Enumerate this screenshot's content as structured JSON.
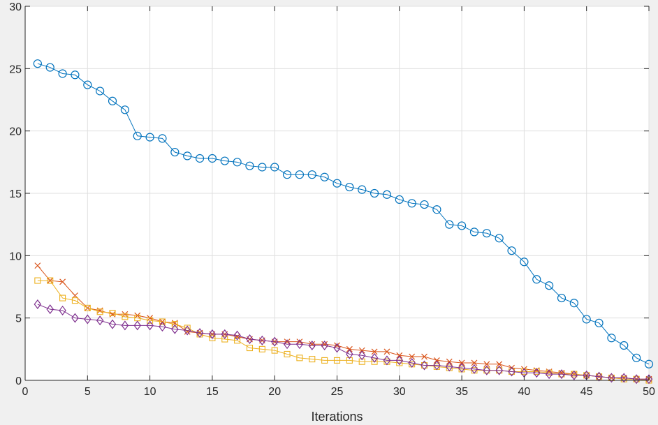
{
  "chart_data": {
    "type": "line",
    "title": "",
    "xlabel": "Iterations",
    "ylabel": "",
    "xlim": [
      0,
      50
    ],
    "ylim": [
      0,
      30
    ],
    "xticks": [
      0,
      5,
      10,
      15,
      20,
      25,
      30,
      35,
      40,
      45,
      50
    ],
    "yticks": [
      0,
      5,
      10,
      15,
      20,
      25,
      30
    ],
    "grid": true,
    "x": [
      1,
      2,
      3,
      4,
      5,
      6,
      7,
      8,
      9,
      10,
      11,
      12,
      13,
      14,
      15,
      16,
      17,
      18,
      19,
      20,
      21,
      22,
      23,
      24,
      25,
      26,
      27,
      28,
      29,
      30,
      31,
      32,
      33,
      34,
      35,
      36,
      37,
      38,
      39,
      40,
      41,
      42,
      43,
      44,
      45,
      46,
      47,
      48,
      49,
      50
    ],
    "series": [
      {
        "color": "#0072BD",
        "marker": "circle",
        "values": [
          25.4,
          25.1,
          24.6,
          24.5,
          23.7,
          23.2,
          22.4,
          21.7,
          19.6,
          19.5,
          19.4,
          18.3,
          18.0,
          17.8,
          17.8,
          17.6,
          17.5,
          17.2,
          17.1,
          17.1,
          16.5,
          16.5,
          16.5,
          16.3,
          15.8,
          15.5,
          15.3,
          15.0,
          14.9,
          14.5,
          14.2,
          14.1,
          13.7,
          12.5,
          12.4,
          11.9,
          11.8,
          11.4,
          10.4,
          9.5,
          8.1,
          7.6,
          6.6,
          6.2,
          4.9,
          4.6,
          3.4,
          2.8,
          1.8,
          1.3
        ]
      },
      {
        "color": "#D95319",
        "marker": "x",
        "values": [
          9.2,
          8.0,
          7.9,
          6.8,
          5.8,
          5.6,
          5.3,
          5.3,
          5.2,
          5.0,
          4.7,
          4.6,
          3.9,
          3.8,
          3.7,
          3.7,
          3.5,
          3.3,
          3.2,
          3.1,
          3.1,
          3.1,
          2.9,
          2.9,
          2.8,
          2.5,
          2.4,
          2.3,
          2.3,
          2.0,
          1.9,
          1.9,
          1.6,
          1.5,
          1.4,
          1.4,
          1.3,
          1.3,
          1.0,
          0.9,
          0.8,
          0.7,
          0.6,
          0.5,
          0.4,
          0.3,
          0.2,
          0.2,
          0.1,
          0.1
        ]
      },
      {
        "color": "#EDB120",
        "marker": "square",
        "values": [
          8.0,
          8.0,
          6.6,
          6.4,
          5.8,
          5.5,
          5.4,
          5.1,
          5.0,
          4.8,
          4.7,
          4.5,
          4.2,
          3.7,
          3.4,
          3.3,
          3.2,
          2.6,
          2.5,
          2.4,
          2.1,
          1.8,
          1.7,
          1.6,
          1.6,
          1.6,
          1.5,
          1.5,
          1.5,
          1.4,
          1.3,
          1.2,
          1.1,
          1.0,
          0.9,
          0.8,
          0.8,
          0.8,
          0.7,
          0.7,
          0.7,
          0.6,
          0.5,
          0.5,
          0.4,
          0.3,
          0.2,
          0.1,
          0.1,
          0.0
        ]
      },
      {
        "color": "#7E2F8E",
        "marker": "diamond",
        "values": [
          6.1,
          5.7,
          5.6,
          5.0,
          4.9,
          4.8,
          4.5,
          4.4,
          4.4,
          4.4,
          4.3,
          4.1,
          4.0,
          3.8,
          3.7,
          3.7,
          3.6,
          3.3,
          3.2,
          3.1,
          2.9,
          2.9,
          2.8,
          2.8,
          2.6,
          2.1,
          2.0,
          1.8,
          1.6,
          1.6,
          1.4,
          1.2,
          1.2,
          1.1,
          1.0,
          0.9,
          0.8,
          0.8,
          0.7,
          0.6,
          0.6,
          0.5,
          0.5,
          0.4,
          0.4,
          0.3,
          0.2,
          0.2,
          0.1,
          0.1
        ]
      }
    ]
  }
}
